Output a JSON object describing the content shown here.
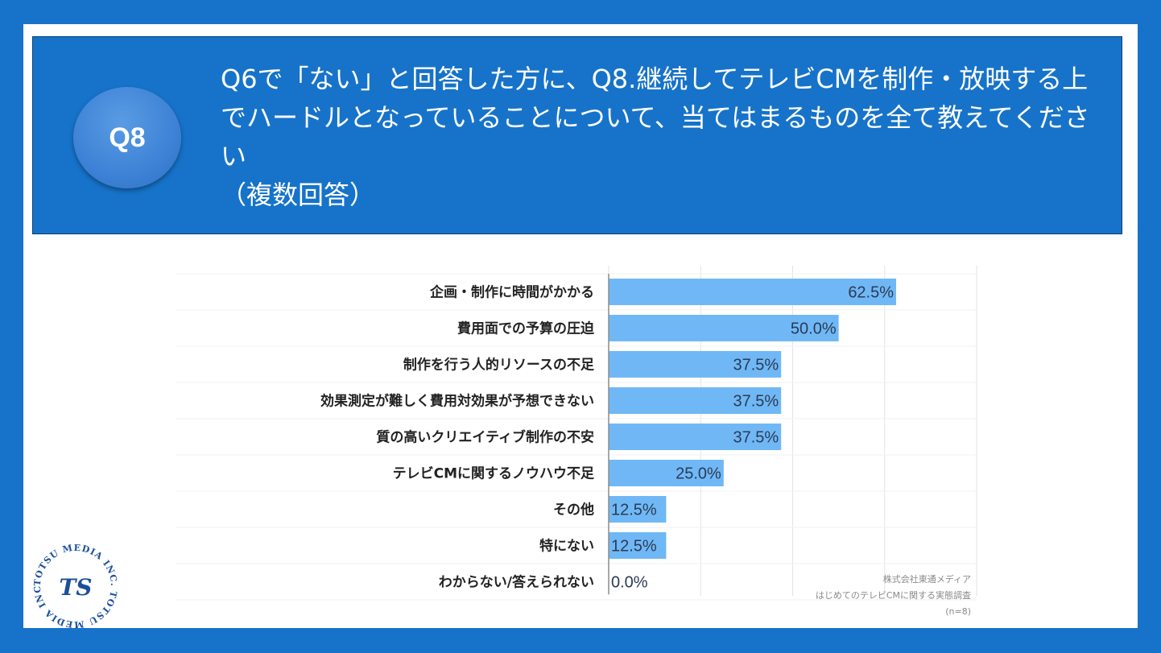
{
  "badge": {
    "label": "Q8"
  },
  "question": {
    "text": "Q6で「ない」と回答した方に、Q8.継続してテレビCMを制作・放映する上でハードルとなっていることについて、当てはまるものを全て教えてください",
    "sub": "（複数回答）"
  },
  "chart_data": {
    "type": "bar",
    "orientation": "horizontal",
    "categories": [
      "企画・制作に時間がかかる",
      "費用面での予算の圧迫",
      "制作を行う人的リソースの不足",
      "効果測定が難しく費用対効果が予想できない",
      "質の高いクリエイティブ制作の不安",
      "テレビCMに関するノウハウ不足",
      "その他",
      "特にない",
      "わからない/答えられない"
    ],
    "values": [
      62.5,
      50.0,
      37.5,
      37.5,
      37.5,
      25.0,
      12.5,
      12.5,
      0.0
    ],
    "value_labels": [
      "62.5%",
      "50.0%",
      "37.5%",
      "37.5%",
      "37.5%",
      "25.0%",
      "12.5%",
      "12.5%",
      "0.0%"
    ],
    "xlim": [
      0,
      80
    ],
    "unit": "%",
    "bar_color": "#70b8f5",
    "grid": true
  },
  "source": {
    "company": "株式会社東通メディア",
    "survey": "はじめてのテレビCMに関する実態調査",
    "n": "(n=8)"
  },
  "logo": {
    "text": "TOTSU MEDIA INC. TOTSU MEDIA INC.",
    "mark": "TS"
  },
  "colors": {
    "frame": "#1673c9",
    "header": "#1673c9",
    "badge": "#3d82d6",
    "bar": "#70b8f5"
  }
}
